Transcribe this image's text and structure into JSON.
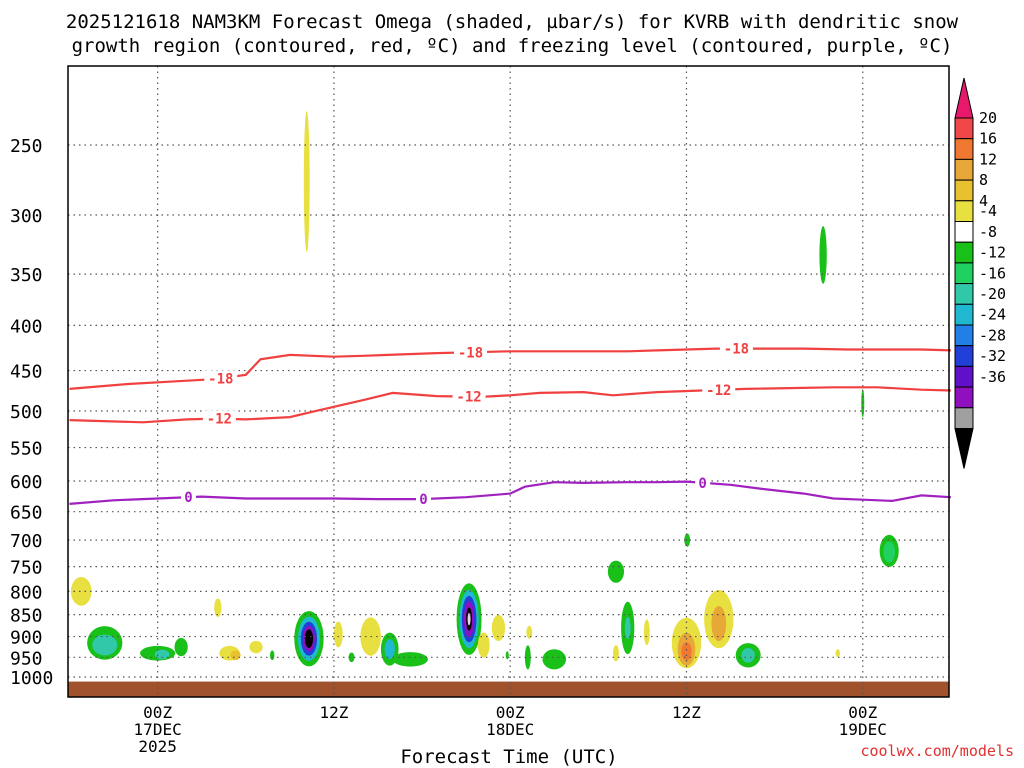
{
  "chart_data": {
    "type": "time-height",
    "title": "2025121618 NAM3KM Forecast Omega (shaded, µbar/s) for KVRB with dendritic snow",
    "subtitle": "growth region (contoured, red, ºC) and freezing level (contoured, purple, ºC)",
    "xlabel": "Forecast Time (UTC)",
    "credit": "coolwx.com/models",
    "x_range_hours": [
      0,
      60
    ],
    "y_range_hpa": [
      1025,
      190
    ],
    "y_ticks": [
      {
        "p": 250,
        "label": "250"
      },
      {
        "p": 300,
        "label": "300"
      },
      {
        "p": 350,
        "label": "350"
      },
      {
        "p": 400,
        "label": "400"
      },
      {
        "p": 450,
        "label": "450"
      },
      {
        "p": 500,
        "label": "500"
      },
      {
        "p": 550,
        "label": "550"
      },
      {
        "p": 600,
        "label": "600"
      },
      {
        "p": 650,
        "label": "650"
      },
      {
        "p": 700,
        "label": "700"
      },
      {
        "p": 750,
        "label": "750"
      },
      {
        "p": 800,
        "label": "800"
      },
      {
        "p": 850,
        "label": "850"
      },
      {
        "p": 900,
        "label": "900"
      },
      {
        "p": 950,
        "label": "950"
      },
      {
        "p": 1000,
        "label": "1000"
      }
    ],
    "x_ticks": [
      {
        "h": 6,
        "lines": [
          "00Z",
          "17DEC",
          "2025"
        ]
      },
      {
        "h": 18,
        "lines": [
          "12Z"
        ]
      },
      {
        "h": 30,
        "lines": [
          "00Z",
          "18DEC"
        ]
      },
      {
        "h": 42,
        "lines": [
          "12Z"
        ]
      },
      {
        "h": 54,
        "lines": [
          "00Z",
          "19DEC"
        ]
      }
    ],
    "colorbar": {
      "labels": [
        "20",
        "16",
        "12",
        "8",
        "4",
        "-4",
        "-8",
        "-12",
        "-16",
        "-20",
        "-24",
        "-28",
        "-32",
        "-36"
      ],
      "colors": [
        "#e8186c",
        "#f04848",
        "#f07830",
        "#e8a838",
        "#e8c030",
        "#e8e040",
        "#ffffff",
        "#18c018",
        "#20d060",
        "#30c8a8",
        "#20b8d0",
        "#2080e8",
        "#2040d8",
        "#6010c8",
        "#9010c0",
        "#a0a0a0",
        "#000000"
      ]
    },
    "ground": {
      "p": 1012,
      "color": "#a0522d"
    },
    "series": [
      {
        "name": "-18",
        "label": "-18",
        "color": "#f04040",
        "x": [
          0,
          4,
          8,
          10,
          12,
          13,
          15,
          18,
          20,
          25,
          30,
          35,
          38,
          40,
          42,
          44,
          47,
          50,
          53,
          55,
          58,
          60
        ],
        "y": [
          472,
          466,
          462,
          460,
          455,
          437,
          432,
          434,
          433,
          430,
          428,
          428,
          428,
          427,
          426,
          425,
          425,
          425,
          426,
          426,
          426,
          427
        ],
        "label_at": [
          {
            "x": 10.3
          },
          {
            "x": 27.3
          },
          {
            "x": 45.4
          }
        ]
      },
      {
        "name": "-12",
        "label": "-12",
        "color": "#f04040",
        "x": [
          0,
          5,
          8,
          10,
          12,
          15,
          17,
          20,
          22,
          25,
          28,
          30,
          32,
          35,
          37,
          40,
          43,
          46,
          49,
          52,
          55,
          58,
          60
        ],
        "y": [
          512,
          515,
          511,
          510,
          511,
          508,
          499,
          486,
          477,
          481,
          482,
          480,
          477,
          476,
          480,
          476,
          474,
          472,
          471,
          470,
          470,
          473,
          474
        ],
        "label_at": [
          {
            "x": 10.2
          },
          {
            "x": 27.2
          },
          {
            "x": 44.2
          }
        ]
      },
      {
        "name": "0",
        "label": "0",
        "color": "#a020c0",
        "x": [
          0,
          3,
          6,
          9,
          12,
          15,
          18,
          21,
          24,
          27,
          30,
          31,
          33,
          35,
          38,
          40,
          42,
          45,
          47,
          50,
          52,
          54,
          56,
          58,
          60
        ],
        "y": [
          637,
          631,
          628,
          625,
          628,
          628,
          628,
          629,
          629,
          626,
          620,
          609,
          602,
          603,
          602,
          602,
          601,
          606,
          612,
          620,
          628,
          630,
          632,
          623,
          626
        ],
        "label_at": [
          {
            "x": 8.1
          },
          {
            "x": 24.1
          },
          {
            "x": 43.1
          }
        ]
      }
    ],
    "omega_features": [
      {
        "h": 16.15,
        "p": 275,
        "rx": 0.2,
        "rp": 50,
        "fill": "#e8e040"
      },
      {
        "h": 51.3,
        "p": 333,
        "rx": 0.25,
        "rp": 25,
        "fill": "#18c018"
      },
      {
        "h": 54.0,
        "p": 490,
        "rx": 0.1,
        "rp": 18,
        "fill": "#18c018"
      },
      {
        "h": 42.05,
        "p": 700,
        "rx": 0.2,
        "rp": 12,
        "fill": "#18c018"
      },
      {
        "h": 55.8,
        "p": 720,
        "rx": 0.65,
        "rp": 30,
        "fill": "#18c018"
      },
      {
        "h": 55.8,
        "p": 722,
        "rx": 0.4,
        "rp": 20,
        "fill": "#20d060"
      },
      {
        "h": 37.2,
        "p": 760,
        "rx": 0.55,
        "rp": 22,
        "fill": "#18c018"
      },
      {
        "h": 0.8,
        "p": 800,
        "rx": 0.7,
        "rp": 30,
        "fill": "#e8e040"
      },
      {
        "h": 10.1,
        "p": 835,
        "rx": 0.25,
        "rp": 20,
        "fill": "#e8e040"
      },
      {
        "h": 2.4,
        "p": 915,
        "rx": 1.2,
        "rp": 40,
        "fill": "#18c018"
      },
      {
        "h": 2.4,
        "p": 920,
        "rx": 0.85,
        "rp": 25,
        "fill": "#30c8a8"
      },
      {
        "h": 6.0,
        "p": 940,
        "rx": 1.2,
        "rp": 18,
        "fill": "#18c018"
      },
      {
        "h": 7.6,
        "p": 925,
        "rx": 0.45,
        "rp": 22,
        "fill": "#18c018"
      },
      {
        "h": 6.3,
        "p": 943,
        "rx": 0.5,
        "rp": 12,
        "fill": "#30c8a8"
      },
      {
        "h": 10.9,
        "p": 940,
        "rx": 0.7,
        "rp": 18,
        "fill": "#e8e040"
      },
      {
        "h": 11.3,
        "p": 945,
        "rx": 0.35,
        "rp": 12,
        "fill": "#e8c030"
      },
      {
        "h": 12.7,
        "p": 925,
        "rx": 0.45,
        "rp": 15,
        "fill": "#e8e040"
      },
      {
        "h": 13.8,
        "p": 945,
        "rx": 0.15,
        "rp": 12,
        "fill": "#18c018"
      },
      {
        "h": 16.3,
        "p": 905,
        "rx": 1.0,
        "rp": 65,
        "fill": "#18c018"
      },
      {
        "h": 16.3,
        "p": 905,
        "rx": 0.75,
        "rp": 52,
        "fill": "#20b8d0"
      },
      {
        "h": 16.3,
        "p": 905,
        "rx": 0.55,
        "rp": 40,
        "fill": "#2040d8"
      },
      {
        "h": 16.3,
        "p": 905,
        "rx": 0.4,
        "rp": 30,
        "fill": "#9010c0"
      },
      {
        "h": 16.3,
        "p": 905,
        "rx": 0.28,
        "rp": 22,
        "fill": "#000000"
      },
      {
        "h": 18.3,
        "p": 895,
        "rx": 0.3,
        "rp": 30,
        "fill": "#e8e040"
      },
      {
        "h": 19.2,
        "p": 950,
        "rx": 0.2,
        "rp": 12,
        "fill": "#18c018"
      },
      {
        "h": 20.5,
        "p": 900,
        "rx": 0.7,
        "rp": 45,
        "fill": "#e8e040"
      },
      {
        "h": 21.8,
        "p": 930,
        "rx": 0.6,
        "rp": 40,
        "fill": "#18c018"
      },
      {
        "h": 21.8,
        "p": 930,
        "rx": 0.35,
        "rp": 24,
        "fill": "#20b8d0"
      },
      {
        "h": 23.2,
        "p": 955,
        "rx": 1.2,
        "rp": 18,
        "fill": "#18c018"
      },
      {
        "h": 27.2,
        "p": 860,
        "rx": 0.85,
        "rp": 80,
        "fill": "#18c018"
      },
      {
        "h": 27.2,
        "p": 860,
        "rx": 0.65,
        "rp": 65,
        "fill": "#20b8d0"
      },
      {
        "h": 27.2,
        "p": 860,
        "rx": 0.5,
        "rp": 52,
        "fill": "#2040d8"
      },
      {
        "h": 27.2,
        "p": 860,
        "rx": 0.35,
        "rp": 40,
        "fill": "#9010c0"
      },
      {
        "h": 27.2,
        "p": 860,
        "rx": 0.2,
        "rp": 26,
        "fill": "#000000"
      },
      {
        "h": 27.2,
        "p": 860,
        "rx": 0.09,
        "rp": 14,
        "fill": "#f0d0f0"
      },
      {
        "h": 28.2,
        "p": 920,
        "rx": 0.4,
        "rp": 30,
        "fill": "#e8e040"
      },
      {
        "h": 29.2,
        "p": 880,
        "rx": 0.45,
        "rp": 30,
        "fill": "#e8e040"
      },
      {
        "h": 29.8,
        "p": 945,
        "rx": 0.1,
        "rp": 10,
        "fill": "#18c018"
      },
      {
        "h": 31.3,
        "p": 890,
        "rx": 0.2,
        "rp": 15,
        "fill": "#e8e040"
      },
      {
        "h": 31.2,
        "p": 950,
        "rx": 0.2,
        "rp": 30,
        "fill": "#18c018"
      },
      {
        "h": 33.0,
        "p": 955,
        "rx": 0.8,
        "rp": 25,
        "fill": "#18c018"
      },
      {
        "h": 37.2,
        "p": 940,
        "rx": 0.2,
        "rp": 20,
        "fill": "#e8e040"
      },
      {
        "h": 38.0,
        "p": 880,
        "rx": 0.45,
        "rp": 60,
        "fill": "#18c018"
      },
      {
        "h": 38.0,
        "p": 880,
        "rx": 0.2,
        "rp": 25,
        "fill": "#30c8a8"
      },
      {
        "h": 39.3,
        "p": 890,
        "rx": 0.2,
        "rp": 30,
        "fill": "#e8e040"
      },
      {
        "h": 42.0,
        "p": 915,
        "rx": 1.0,
        "rp": 60,
        "fill": "#e8e040"
      },
      {
        "h": 42.0,
        "p": 930,
        "rx": 0.6,
        "rp": 40,
        "fill": "#e8a838"
      },
      {
        "h": 42.0,
        "p": 935,
        "rx": 0.35,
        "rp": 22,
        "fill": "#f07830"
      },
      {
        "h": 44.2,
        "p": 860,
        "rx": 1.0,
        "rp": 65,
        "fill": "#e8e040"
      },
      {
        "h": 44.2,
        "p": 870,
        "rx": 0.5,
        "rp": 40,
        "fill": "#e8a838"
      },
      {
        "h": 46.2,
        "p": 945,
        "rx": 0.85,
        "rp": 30,
        "fill": "#18c018"
      },
      {
        "h": 46.2,
        "p": 945,
        "rx": 0.45,
        "rp": 18,
        "fill": "#30c8a8"
      },
      {
        "h": 52.3,
        "p": 940,
        "rx": 0.15,
        "rp": 10,
        "fill": "#e8e040"
      }
    ]
  }
}
